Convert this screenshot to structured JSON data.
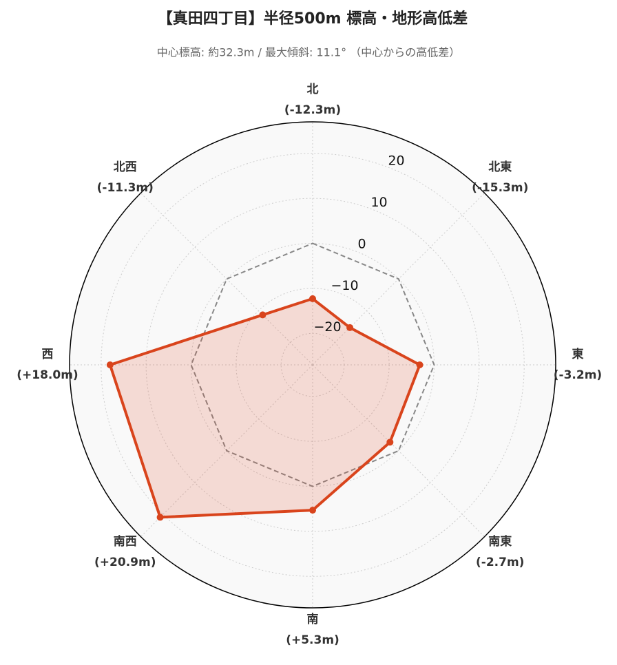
{
  "chart_data": {
    "type": "radar",
    "title": "【真田四丁目】半径500m 標高・地形高低差",
    "subtitle": "中心標高: 約32.3m / 最大傾斜: 11.1° （中心からの高低差）",
    "categories": [
      "北",
      "北東",
      "東",
      "南東",
      "南",
      "南西",
      "西",
      "北西"
    ],
    "values": [
      -12.3,
      -15.3,
      -3.2,
      -2.7,
      5.3,
      20.9,
      18.0,
      -11.3
    ],
    "value_labels": [
      "(-12.3m)",
      "(-15.3m)",
      "(-3.2m)",
      "(-2.7m)",
      "(+5.3m)",
      "(+20.9m)",
      "(+18.0m)",
      "(-11.3m)"
    ],
    "color": "#d9441c",
    "reference_value": 0,
    "ylim": [
      -27,
      27
    ],
    "yticks": [
      {
        "value": -20,
        "label": "−20"
      },
      {
        "value": -10,
        "label": "−10"
      },
      0,
      10,
      20
    ],
    "grid": true
  }
}
